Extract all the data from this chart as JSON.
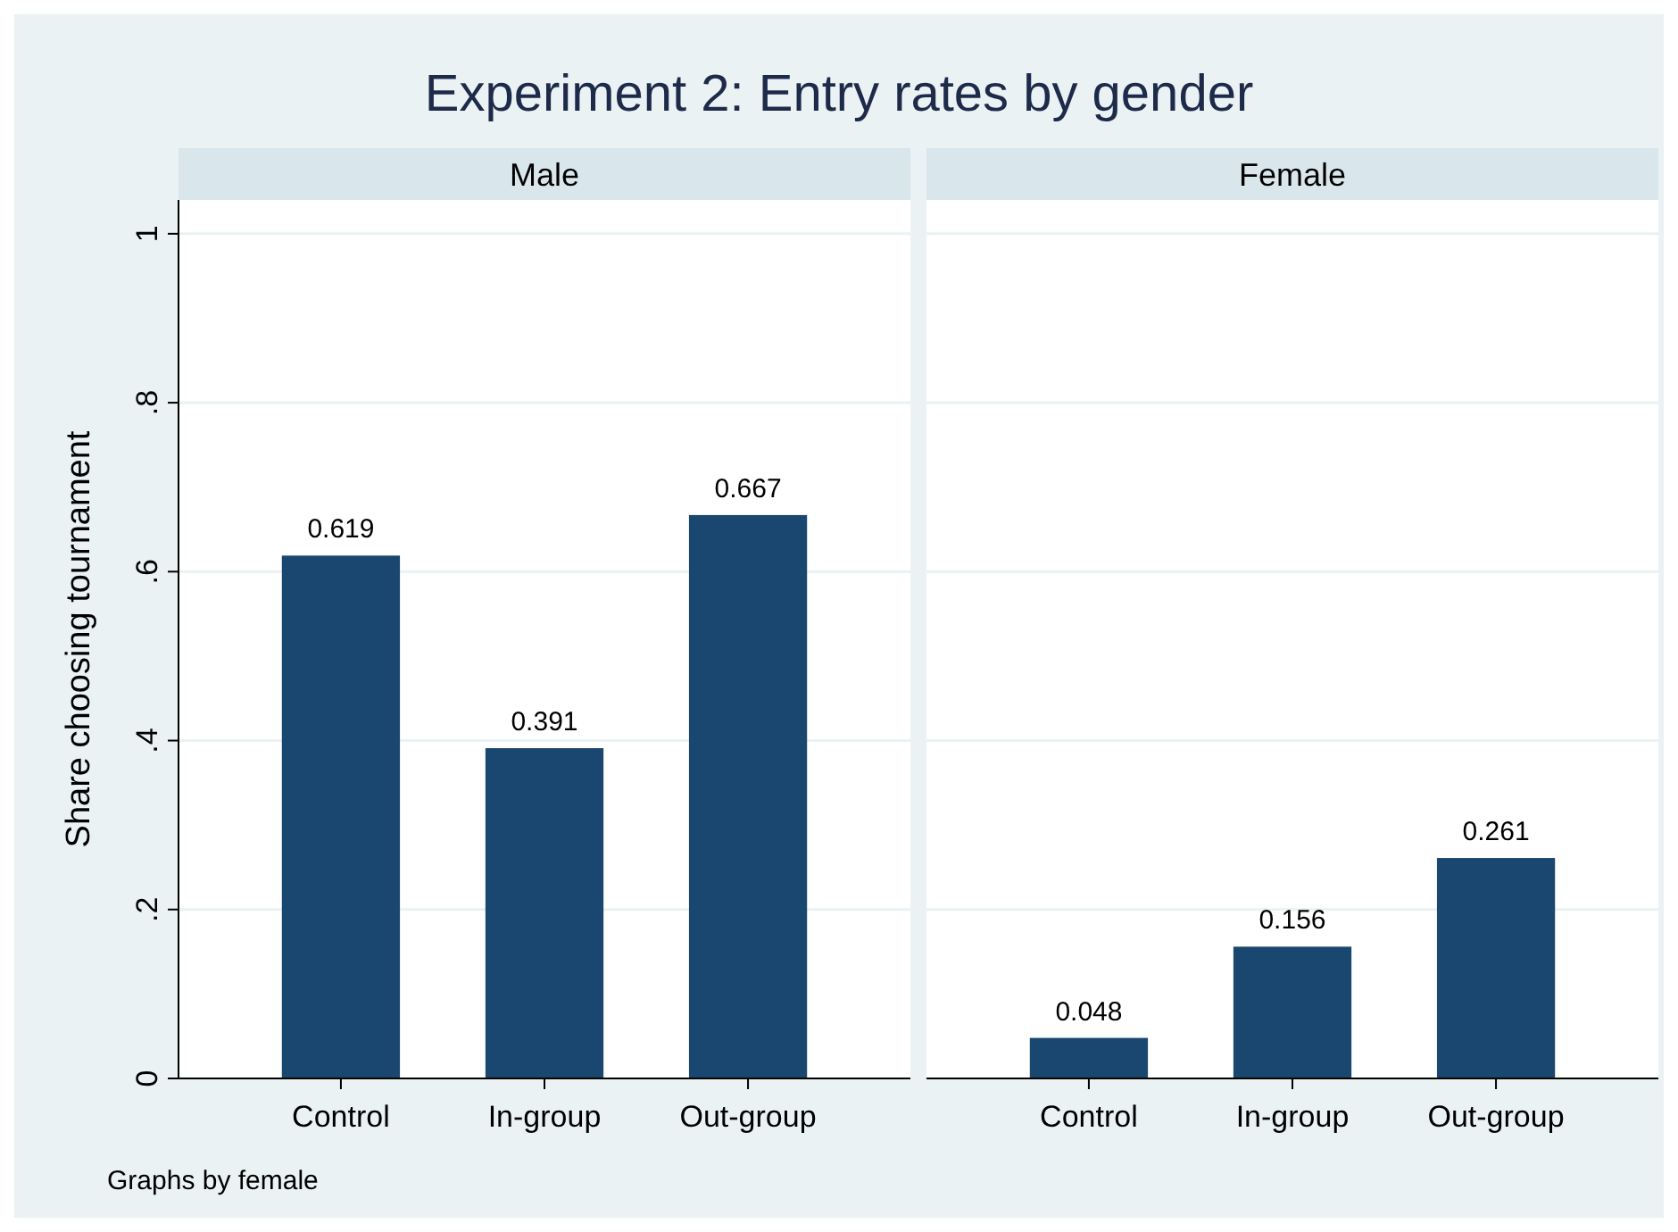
{
  "chart_data": [
    {
      "type": "bar",
      "title": "Experiment 2: Entry rates by gender",
      "subtitle": "Male",
      "ylabel": "Share choosing tournament",
      "categories": [
        "Control",
        "In-group",
        "Out-group"
      ],
      "values": [
        0.619,
        0.391,
        0.667
      ],
      "color": "#1a476f",
      "ylim": [
        0,
        1.04
      ],
      "yticks": [
        0,
        {
          "value": 0.2,
          "label": ".2"
        },
        {
          "value": 0.4,
          "label": ".4"
        },
        {
          "value": 0.6,
          "label": ".6"
        },
        {
          "value": 0.8,
          "label": ".8"
        },
        1
      ],
      "grid": "y",
      "data_labels": true,
      "annotations": [
        "Graphs by female"
      ]
    },
    {
      "type": "bar",
      "subtitle": "Female",
      "categories": [
        "Control",
        "In-group",
        "Out-group"
      ],
      "values": [
        0.048,
        0.156,
        0.261
      ],
      "color": "#1a476f",
      "ylim": [
        0,
        1.04
      ],
      "yticks": [
        0,
        0.2,
        0.4,
        0.6,
        0.8,
        1
      ],
      "grid": "y",
      "data_labels": true,
      "tick_labels": "x"
    }
  ]
}
